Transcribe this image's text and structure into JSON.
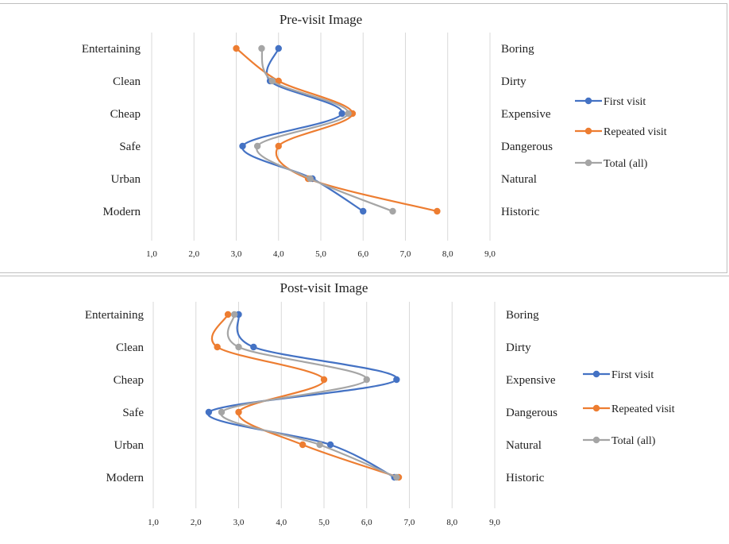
{
  "chart_data": [
    {
      "type": "line",
      "title": "Pre-visit Image",
      "left_labels": [
        "Entertaining",
        "Clean",
        "Cheap",
        "Safe",
        "Urban",
        "Modern"
      ],
      "right_labels": [
        "Boring",
        "Dirty",
        "Expensive",
        "Dangerous",
        "Natural",
        "Historic"
      ],
      "x_ticks": [
        "1,0",
        "2,0",
        "3,0",
        "4,0",
        "5,0",
        "6,0",
        "7,0",
        "8,0",
        "9,0"
      ],
      "xlim": [
        1,
        9
      ],
      "grid": true,
      "legend_position": "right",
      "series": [
        {
          "name": "First visit",
          "color": "#4472C4",
          "values": [
            4.0,
            3.8,
            5.5,
            3.15,
            4.8,
            6.0
          ]
        },
        {
          "name": "Repeated visit",
          "color": "#ED7D31",
          "values": [
            3.0,
            4.0,
            5.75,
            4.0,
            4.7,
            7.75
          ]
        },
        {
          "name": "Total (all)",
          "color": "#A5A5A5",
          "values": [
            3.6,
            3.85,
            5.65,
            3.5,
            4.75,
            6.7
          ]
        }
      ]
    },
    {
      "type": "line",
      "title": "Post-visit Image",
      "left_labels": [
        "Entertaining",
        "Clean",
        "Cheap",
        "Safe",
        "Urban",
        "Modern"
      ],
      "right_labels": [
        "Boring",
        "Dirty",
        "Expensive",
        "Dangerous",
        "Natural",
        "Historic"
      ],
      "x_ticks": [
        "1,0",
        "2,0",
        "3,0",
        "4,0",
        "5,0",
        "6,0",
        "7,0",
        "8,0",
        "9,0"
      ],
      "xlim": [
        1,
        9
      ],
      "grid": true,
      "legend_position": "right",
      "series": [
        {
          "name": "First visit",
          "color": "#4472C4",
          "values": [
            3.0,
            3.35,
            6.7,
            2.3,
            5.15,
            6.65
          ]
        },
        {
          "name": "Repeated visit",
          "color": "#ED7D31",
          "values": [
            2.75,
            2.5,
            5.0,
            3.0,
            4.5,
            6.75
          ]
        },
        {
          "name": "Total (all)",
          "color": "#A5A5A5",
          "values": [
            2.9,
            3.0,
            6.0,
            2.6,
            4.9,
            6.7
          ]
        }
      ]
    }
  ]
}
